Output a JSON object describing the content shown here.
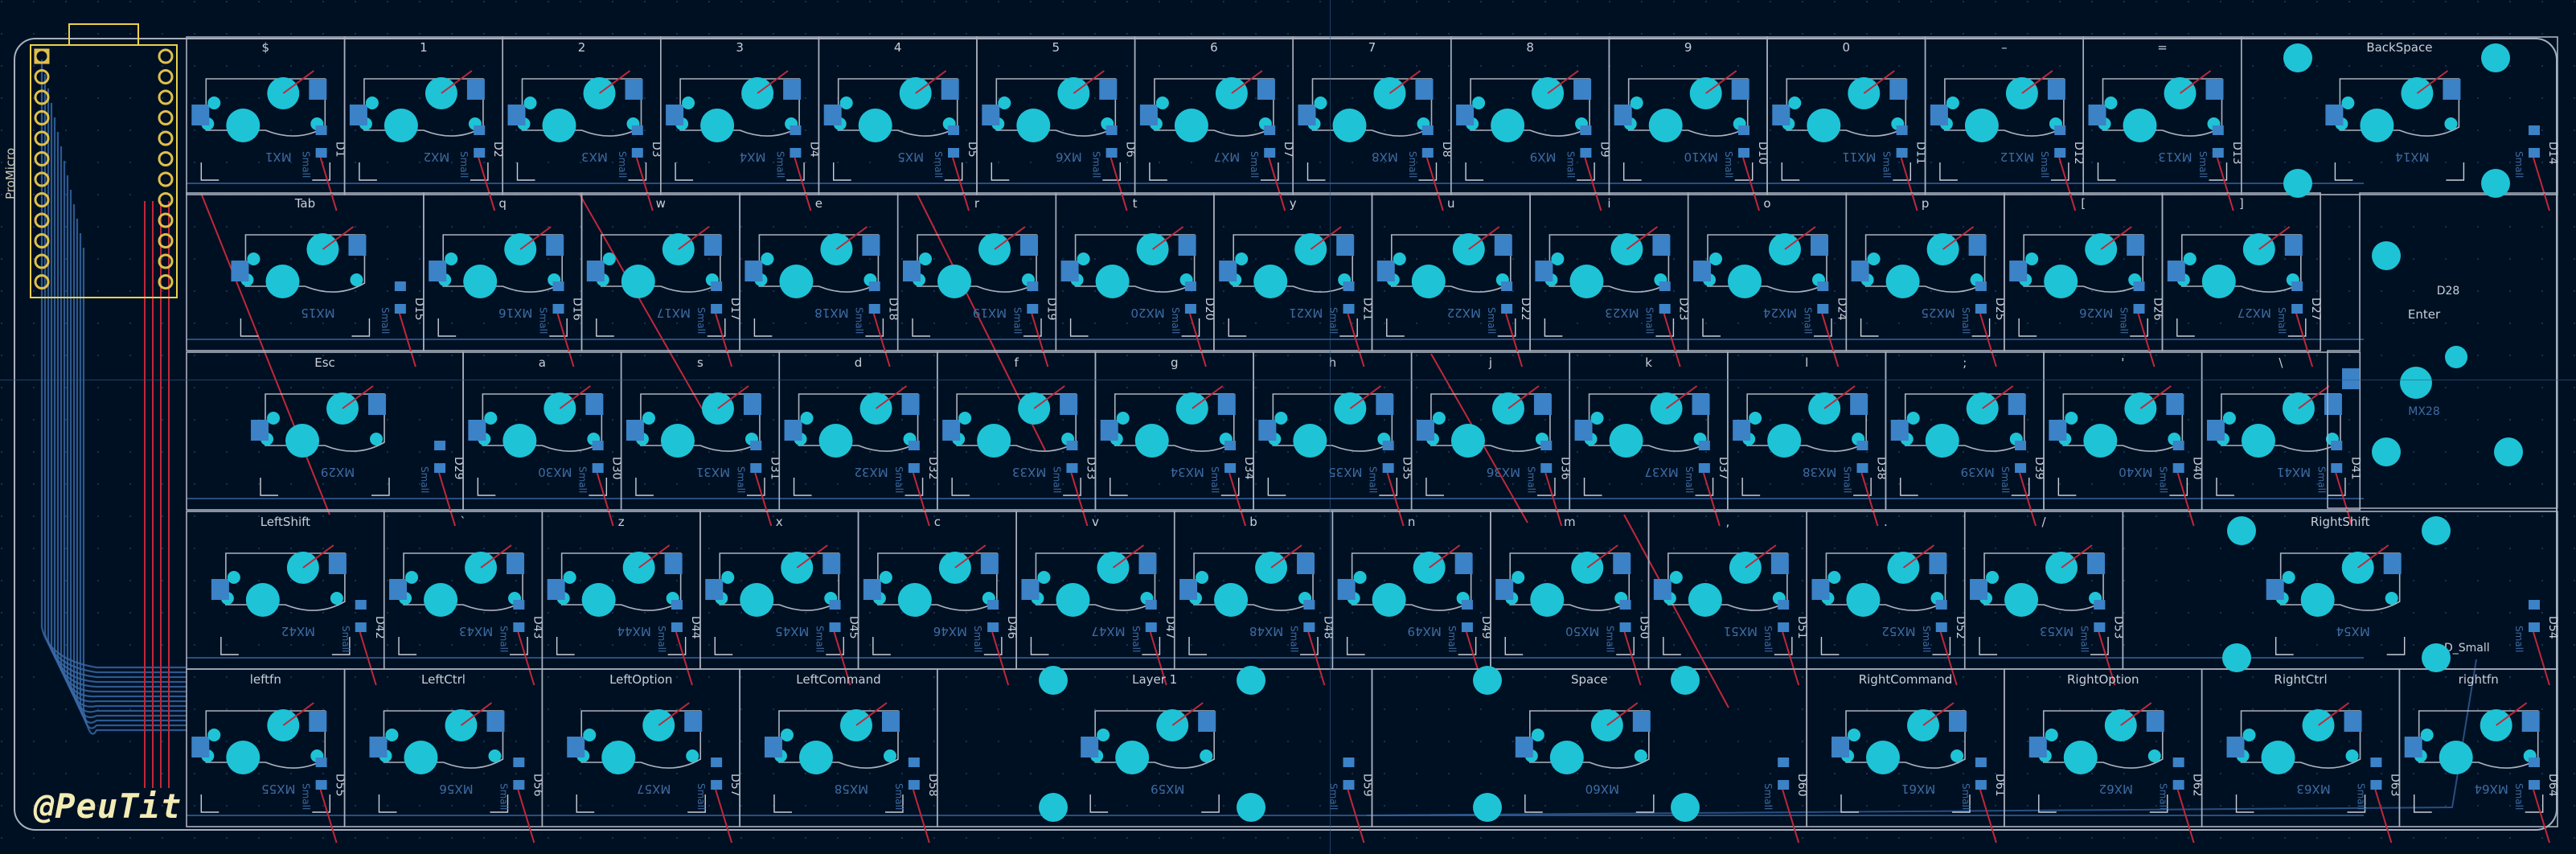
{
  "watermark": "@PeuTit",
  "mcu_label": "ProMicro",
  "colors": {
    "background": "#001023",
    "outline": "#a7b1be",
    "pad": "#1fc3d6",
    "pad_square": "#3b82c7",
    "trace_red": "#c0283a",
    "trace_blue": "#3a6aa8",
    "silk": "#c8d0d8",
    "fab_text": "#3d6ca2"
  },
  "rows": [
    {
      "x0": 0,
      "keys": [
        {
          "label": "$",
          "w": 1,
          "ref": "MX1",
          "diode": "D1"
        },
        {
          "label": "1",
          "w": 1,
          "ref": "MX2",
          "diode": "D2"
        },
        {
          "label": "2",
          "w": 1,
          "ref": "MX3",
          "diode": "D3"
        },
        {
          "label": "3",
          "w": 1,
          "ref": "MX4",
          "diode": "D4"
        },
        {
          "label": "4",
          "w": 1,
          "ref": "MX5",
          "diode": "D5"
        },
        {
          "label": "5",
          "w": 1,
          "ref": "MX6",
          "diode": "D6"
        },
        {
          "label": "6",
          "w": 1,
          "ref": "MX7",
          "diode": "D7"
        },
        {
          "label": "7",
          "w": 1,
          "ref": "MX8",
          "diode": "D8"
        },
        {
          "label": "8",
          "w": 1,
          "ref": "MX9",
          "diode": "D9"
        },
        {
          "label": "9",
          "w": 1,
          "ref": "MX10",
          "diode": "D10"
        },
        {
          "label": "0",
          "w": 1,
          "ref": "MX11",
          "diode": "D11"
        },
        {
          "label": "–",
          "w": 1,
          "ref": "MX12",
          "diode": "D12"
        },
        {
          "label": "=",
          "w": 1,
          "ref": "MX13",
          "diode": "D13"
        },
        {
          "label": "BackSpace",
          "w": 2,
          "ref": "MX14",
          "diode": "D14"
        }
      ]
    },
    {
      "x0": 0,
      "keys": [
        {
          "label": "Tab",
          "w": 1.5,
          "ref": "MX15",
          "diode": "D15"
        },
        {
          "label": "q",
          "w": 1,
          "ref": "MX16",
          "diode": "D16"
        },
        {
          "label": "w",
          "w": 1,
          "ref": "MX17",
          "diode": "D17"
        },
        {
          "label": "e",
          "w": 1,
          "ref": "MX18",
          "diode": "D18"
        },
        {
          "label": "r",
          "w": 1,
          "ref": "MX19",
          "diode": "D19"
        },
        {
          "label": "t",
          "w": 1,
          "ref": "MX20",
          "diode": "D20"
        },
        {
          "label": "y",
          "w": 1,
          "ref": "MX21",
          "diode": "D21"
        },
        {
          "label": "u",
          "w": 1,
          "ref": "MX22",
          "diode": "D22"
        },
        {
          "label": "i",
          "w": 1,
          "ref": "MX23",
          "diode": "D23"
        },
        {
          "label": "o",
          "w": 1,
          "ref": "MX24",
          "diode": "D24"
        },
        {
          "label": "p",
          "w": 1,
          "ref": "MX25",
          "diode": "D25"
        },
        {
          "label": "[",
          "w": 1,
          "ref": "MX26",
          "diode": "D26"
        },
        {
          "label": "]",
          "w": 1,
          "ref": "MX27",
          "diode": "D27"
        }
      ]
    },
    {
      "x0": 0,
      "keys": [
        {
          "label": "Esc",
          "w": 1.75,
          "ref": "MX29",
          "diode": "D29"
        },
        {
          "label": "a",
          "w": 1,
          "ref": "MX30",
          "diode": "D30"
        },
        {
          "label": "s",
          "w": 1,
          "ref": "MX31",
          "diode": "D31"
        },
        {
          "label": "d",
          "w": 1,
          "ref": "MX32",
          "diode": "D32"
        },
        {
          "label": "f",
          "w": 1,
          "ref": "MX33",
          "diode": "D33"
        },
        {
          "label": "g",
          "w": 1,
          "ref": "MX34",
          "diode": "D34"
        },
        {
          "label": "h",
          "w": 1,
          "ref": "MX35",
          "diode": "D35"
        },
        {
          "label": "j",
          "w": 1,
          "ref": "MX36",
          "diode": "D36"
        },
        {
          "label": "k",
          "w": 1,
          "ref": "MX37",
          "diode": "D37"
        },
        {
          "label": "l",
          "w": 1,
          "ref": "MX38",
          "diode": "D38"
        },
        {
          "label": ";",
          "w": 1,
          "ref": "MX39",
          "diode": "D39"
        },
        {
          "label": "'",
          "w": 1,
          "ref": "MX40",
          "diode": "D40"
        },
        {
          "label": "\\",
          "w": 1,
          "ref": "MX41",
          "diode": "D41"
        }
      ]
    },
    {
      "x0": 0,
      "keys": [
        {
          "label": "LeftShift",
          "w": 1.25,
          "ref": "MX42",
          "diode": "D42"
        },
        {
          "label": "`",
          "w": 1,
          "ref": "MX43",
          "diode": "D43"
        },
        {
          "label": "z",
          "w": 1,
          "ref": "MX44",
          "diode": "D44"
        },
        {
          "label": "x",
          "w": 1,
          "ref": "MX45",
          "diode": "D45"
        },
        {
          "label": "c",
          "w": 1,
          "ref": "MX46",
          "diode": "D46"
        },
        {
          "label": "v",
          "w": 1,
          "ref": "MX47",
          "diode": "D47"
        },
        {
          "label": "b",
          "w": 1,
          "ref": "MX48",
          "diode": "D48"
        },
        {
          "label": "n",
          "w": 1,
          "ref": "MX49",
          "diode": "D49"
        },
        {
          "label": "m",
          "w": 1,
          "ref": "MX50",
          "diode": "D50"
        },
        {
          "label": ",",
          "w": 1,
          "ref": "MX51",
          "diode": "D51"
        },
        {
          "label": ".",
          "w": 1,
          "ref": "MX52",
          "diode": "D52"
        },
        {
          "label": "/",
          "w": 1,
          "ref": "MX53",
          "diode": "D53"
        },
        {
          "label": "RightShift",
          "w": 2.75,
          "ref": "MX54",
          "diode": "D54"
        }
      ]
    },
    {
      "x0": 0,
      "keys": [
        {
          "label": "leftfn",
          "w": 1,
          "ref": "MX55",
          "diode": "D55"
        },
        {
          "label": "LeftCtrl",
          "w": 1.25,
          "ref": "MX56",
          "diode": "D56"
        },
        {
          "label": "LeftOption",
          "w": 1.25,
          "ref": "MX57",
          "diode": "D57"
        },
        {
          "label": "LeftCommand",
          "w": 1.25,
          "ref": "MX58",
          "diode": "D58"
        },
        {
          "label": "Layer 1",
          "w": 2.75,
          "ref": "MX59",
          "diode": "D59"
        },
        {
          "label": "Space",
          "w": 2.75,
          "ref": "MX60",
          "diode": "D60"
        },
        {
          "label": "RightCommand",
          "w": 1.25,
          "ref": "MX61",
          "diode": "D61"
        },
        {
          "label": "RightOption",
          "w": 1.25,
          "ref": "MX62",
          "diode": "D62"
        },
        {
          "label": "RightCtrl",
          "w": 1.25,
          "ref": "MX63",
          "diode": "D63"
        },
        {
          "label": "rightfn",
          "w": 1,
          "ref": "MX64",
          "diode": "D64"
        }
      ]
    }
  ],
  "enter": {
    "label": "Enter",
    "ref": "MX28",
    "diode": "D28"
  },
  "extra_label": "D_Small",
  "diode_silk": "Small"
}
